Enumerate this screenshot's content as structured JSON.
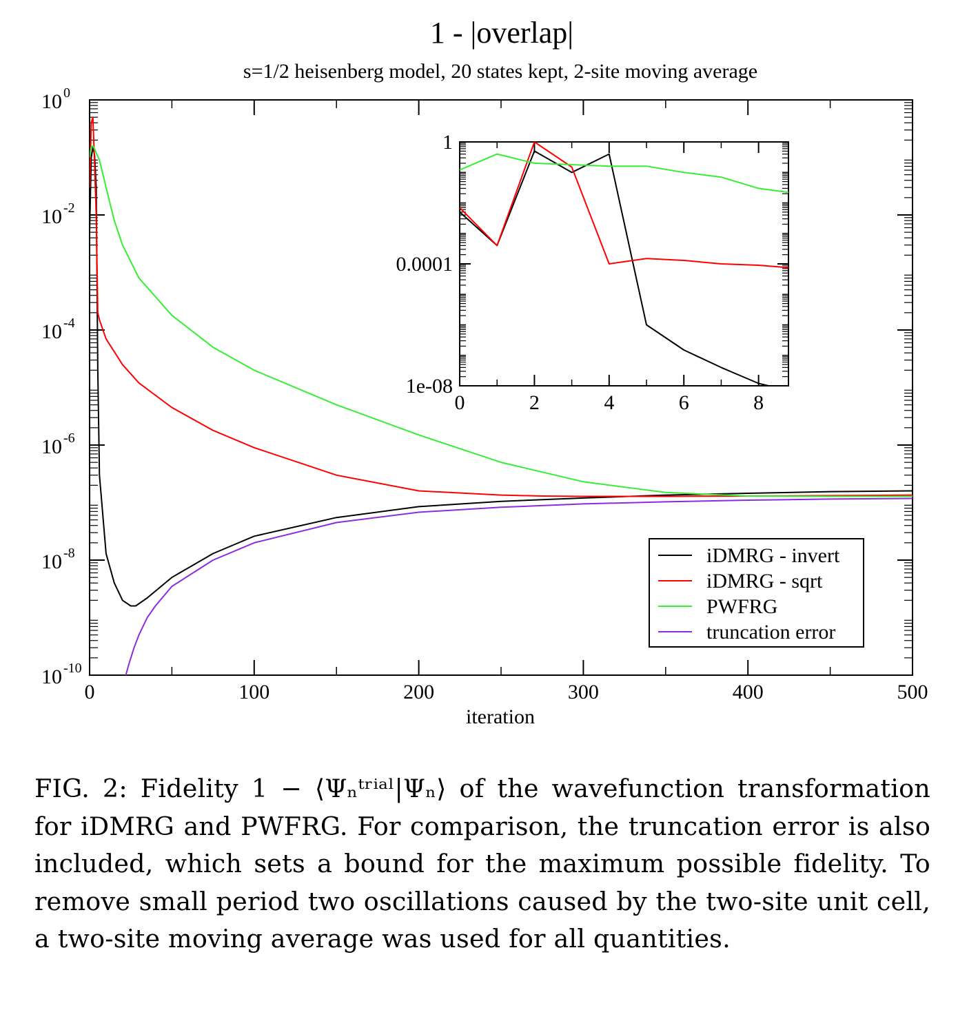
{
  "chart_data": [
    {
      "type": "line",
      "title": "1 - |overlap|",
      "subtitle": "s=1/2 heisenberg model, 20 states kept, 2-site moving average",
      "xlabel": "iteration",
      "ylabel": "",
      "xlim": [
        0,
        500
      ],
      "ylim": [
        1e-10,
        1
      ],
      "y_scale": "log",
      "x_ticks": [
        "0",
        "100",
        "200",
        "300",
        "400",
        "500"
      ],
      "y_ticks": [
        {
          "base": "10",
          "exp": "0"
        },
        {
          "base": "10",
          "exp": "-2"
        },
        {
          "base": "10",
          "exp": "-4"
        },
        {
          "base": "10",
          "exp": "-6"
        },
        {
          "base": "10",
          "exp": "-8"
        },
        {
          "base": "10",
          "exp": "-10"
        }
      ],
      "legend_position": "bottom-right",
      "grid": false,
      "series": [
        {
          "name": "iDMRG - invert",
          "color": "#000000",
          "x": [
            0,
            1,
            2,
            3,
            4,
            5,
            6,
            10,
            15,
            20,
            25,
            28,
            35,
            50,
            75,
            100,
            150,
            200,
            250,
            300,
            350,
            400,
            450,
            500
          ],
          "y": [
            0.005,
            0.1,
            0.15,
            0.11,
            0.03,
            2e-05,
            3e-07,
            1.3e-08,
            4e-09,
            2e-09,
            1.6e-09,
            1.6e-09,
            2.2e-09,
            5e-09,
            1.3e-08,
            2.6e-08,
            5.5e-08,
            8.5e-08,
            1.05e-07,
            1.2e-07,
            1.35e-07,
            1.45e-07,
            1.55e-07,
            1.6e-07
          ]
        },
        {
          "name": "iDMRG - sqrt",
          "color": "#ff0000",
          "x": [
            0,
            1,
            2,
            3,
            4,
            5,
            6,
            10,
            20,
            30,
            50,
            75,
            100,
            150,
            200,
            250,
            275,
            300,
            350,
            400,
            450,
            500
          ],
          "y": [
            0.03,
            0.4,
            0.5,
            0.08,
            0.01,
            0.0002,
            0.00015,
            7e-05,
            2.5e-05,
            1.2e-05,
            4.5e-06,
            1.8e-06,
            9e-07,
            3e-07,
            1.6e-07,
            1.35e-07,
            1.3e-07,
            1.28e-07,
            1.28e-07,
            1.3e-07,
            1.32e-07,
            1.35e-07
          ]
        },
        {
          "name": "PWFRG",
          "color": "#33ee33",
          "x": [
            0,
            1,
            2,
            3,
            4,
            6,
            10,
            15,
            20,
            30,
            50,
            75,
            100,
            150,
            200,
            250,
            300,
            350,
            400,
            450,
            500
          ],
          "y": [
            0.1,
            0.15,
            0.16,
            0.14,
            0.12,
            0.09,
            0.03,
            0.008,
            0.003,
            0.0008,
            0.00018,
            5e-05,
            2e-05,
            5e-06,
            1.5e-06,
            5e-07,
            2.3e-07,
            1.5e-07,
            1.3e-07,
            1.28e-07,
            1.28e-07
          ]
        },
        {
          "name": "truncation error",
          "color": "#8a2be2",
          "x": [
            22,
            24,
            27,
            30,
            35,
            40,
            50,
            75,
            100,
            150,
            200,
            250,
            300,
            350,
            400,
            450,
            500
          ],
          "y": [
            1e-10,
            1.6e-10,
            3e-10,
            5e-10,
            1e-09,
            1.6e-09,
            3.5e-09,
            1e-08,
            2e-08,
            4.5e-08,
            6.8e-08,
            8.3e-08,
            9.5e-08,
            1.03e-07,
            1.1e-07,
            1.15e-07,
            1.18e-07
          ]
        }
      ]
    },
    {
      "type": "line",
      "title": "",
      "xlabel": "",
      "ylabel": "",
      "xlim": [
        0,
        8.8
      ],
      "ylim": [
        1e-08,
        1
      ],
      "y_scale": "log",
      "x_ticks": [
        "0",
        "2",
        "4",
        "6",
        "8"
      ],
      "y_ticks": [
        "1",
        "0.0001",
        "1e-08"
      ],
      "grid": false,
      "series": [
        {
          "name": "iDMRG - invert",
          "color": "#000000",
          "x": [
            0,
            1,
            2,
            3,
            4,
            5,
            6,
            7,
            8,
            8.8
          ],
          "y": [
            0.005,
            0.0004,
            0.5,
            0.1,
            0.4,
            1e-06,
            1.5e-07,
            4e-08,
            1.2e-08,
            7e-09
          ]
        },
        {
          "name": "iDMRG - sqrt",
          "color": "#ff0000",
          "x": [
            0,
            1,
            2,
            3,
            4,
            5,
            6,
            7,
            8,
            8.8
          ],
          "y": [
            0.007,
            0.0004,
            1,
            0.15,
            0.0001,
            0.00015,
            0.00013,
            0.0001,
            9e-05,
            7.5e-05
          ]
        },
        {
          "name": "PWFRG",
          "color": "#33ee33",
          "x": [
            0,
            1,
            2,
            3,
            4,
            5,
            6,
            7,
            8,
            8.8
          ],
          "y": [
            0.12,
            0.4,
            0.2,
            0.18,
            0.16,
            0.16,
            0.1,
            0.07,
            0.03,
            0.022
          ]
        }
      ]
    }
  ],
  "caption": "FIG. 2: Fidelity 1 − ⟨Ψₙᵗʳⁱᵃˡ|Ψₙ⟩ of the wavefunction transformation for iDMRG and PWFRG. For comparison, the truncation error is also included, which sets a bound for the maximum possible fidelity. To remove small period two oscillations caused by the two-site unit cell, a two-site moving average was used for all quantities."
}
